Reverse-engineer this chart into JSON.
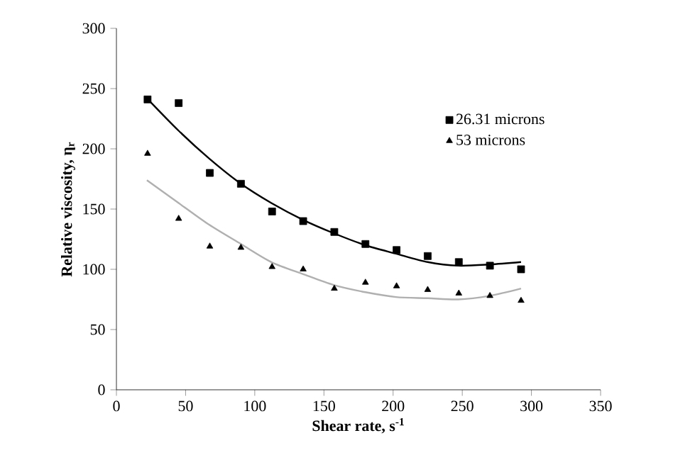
{
  "chart_data": {
    "type": "scatter",
    "xlabel": "**Shear rate, s$^{-1}$**",
    "ylabel": "**Relative viscosity,  η$_{r}$**",
    "xlim": [
      0,
      350
    ],
    "xticks": [
      0,
      50,
      100,
      150,
      200,
      250,
      300,
      350
    ],
    "ylim": [
      0,
      300
    ],
    "yticks": [
      0,
      50,
      100,
      150,
      200,
      250,
      300
    ],
    "grid": false,
    "legend": "top right",
    "series": [
      {
        "name": "26.31 microns",
        "color": "#000000",
        "marker": "square",
        "x": [
          22.5,
          45,
          67.5,
          90,
          112.5,
          135,
          157.5,
          180,
          202.5,
          225,
          247.5,
          270,
          292.5
        ],
        "values": [
          241,
          238,
          180,
          171,
          148,
          140,
          131,
          121,
          116,
          111,
          106,
          103,
          100
        ]
      },
      {
        "name": "53 microns",
        "color": "#000000",
        "marker": "triangle",
        "x": [
          22.5,
          45,
          67.5,
          90,
          112.5,
          135,
          157.5,
          180,
          202.5,
          225,
          247.5,
          270,
          292.5
        ],
        "values": [
          196,
          142,
          119,
          118,
          102,
          100,
          84,
          89,
          86,
          83,
          80,
          78,
          74
        ]
      },
      {
        "type": "line",
        "color": "#000000",
        "marker": "none",
        "x": [
          22,
          45,
          67,
          90,
          112,
          135,
          157,
          180,
          202,
          225,
          247,
          270,
          292.5
        ],
        "values": [
          242,
          215,
          192,
          171,
          155,
          141,
          130,
          120,
          113,
          106,
          103,
          104,
          106
        ]
      },
      {
        "type": "line",
        "color": "#b0b0b0",
        "marker": "none",
        "x": [
          22,
          45,
          67,
          90,
          112,
          135,
          157,
          180,
          202,
          225,
          247,
          270,
          292.5
        ],
        "values": [
          174,
          155,
          137,
          121,
          106,
          96,
          87,
          81,
          77,
          76,
          75,
          78,
          84
        ]
      }
    ]
  }
}
